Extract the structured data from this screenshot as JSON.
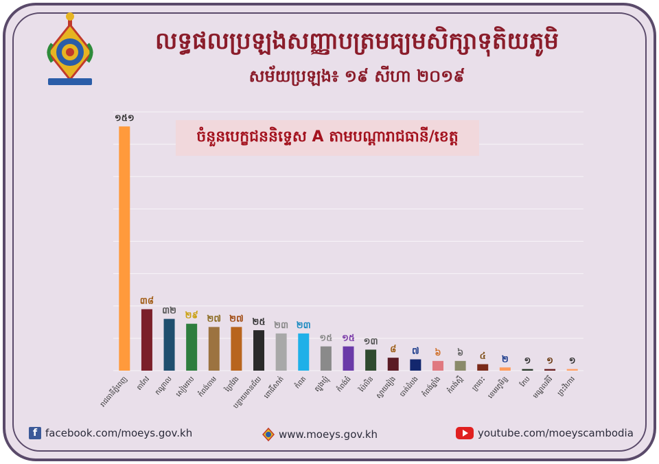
{
  "header": {
    "title": "លទ្ធផលប្រឡងសញ្ញាបត្រមធ្យមសិក្សាទុតិយភូមិ",
    "subtitle": "សម័យប្រឡង៖ ១៩ សីហា ២០១៩"
  },
  "chart_data": {
    "type": "bar",
    "title": "ចំនួនបេក្ខជននិទ្ទេស A តាមបណ្ដារាជធានី/ខេត្ត",
    "categories": [
      "រាជធានីភ្នំពេញ",
      "តាកែវ",
      "កណ្ដាល",
      "សៀមរាប",
      "កំពង់ចាម",
      "ព្រៃវែង",
      "បន្ទាយមានជ័យ",
      "ពោធិ៍សាត់",
      "កំពត",
      "ត្បូងឃ្មុំ",
      "កំពង់ធំ",
      "ប៉ៃលិន",
      "ស្វាយរៀង",
      "បាត់ដំបង",
      "កំពង់ឆ្នាំង",
      "កំពង់ស្ពឺ",
      "ក្រចេះ",
      "ខេមរភូមិន្ទ",
      "កែប",
      "មណ្ឌលគិរី",
      "ព្រះវិហារ"
    ],
    "value_labels": [
      "១៥១",
      "៣៨",
      "៣២",
      "២៩",
      "២៧",
      "២៧",
      "២៥",
      "២៣",
      "២៣",
      "១៥",
      "១៥",
      "១៣",
      "៨",
      "៧",
      "៦",
      "៦",
      "៤",
      "២",
      "១",
      "១",
      "១"
    ],
    "values": [
      151,
      38,
      32,
      29,
      27,
      27,
      25,
      23,
      23,
      15,
      15,
      13,
      8,
      7,
      6,
      6,
      4,
      2,
      1,
      1,
      1
    ],
    "colors": [
      "#ff9a3c",
      "#7b1f2a",
      "#1f4e6e",
      "#2e7d3e",
      "#9c7340",
      "#b8651e",
      "#2a2a2a",
      "#a8a8a8",
      "#1fb0e8",
      "#8a8a8a",
      "#6a3aa8",
      "#2f4a2f",
      "#5a1a24",
      "#13276e",
      "#e07880",
      "#8a8a6a",
      "#7a2a1a",
      "#ff9a5a",
      "#2a3a2a",
      "#6a2020",
      "#ffa066"
    ],
    "label_colors": [
      "#333333",
      "#a05a10",
      "#555555",
      "#c9a010",
      "#8a6a20",
      "#a04a10",
      "#333333",
      "#888888",
      "#1a8ac0",
      "#888888",
      "#7a3aa8",
      "#555555",
      "#9a5a10",
      "#1a3a8a",
      "#d0702a",
      "#666666",
      "#7a4a10",
      "#1a3a8a",
      "#333333",
      "#6a3a10",
      "#333333"
    ],
    "ylim": [
      0,
      160
    ],
    "grid": true
  },
  "footer": {
    "facebook_icon_glyph": "f",
    "facebook": "facebook.com/moeys.gov.kh",
    "website": "www.moeys.gov.kh",
    "youtube": "youtube.com/moeyscambodia"
  },
  "colors": {
    "title": "#8a1c2a",
    "background": "#e9dfea",
    "frame": "#5a4a6a"
  }
}
